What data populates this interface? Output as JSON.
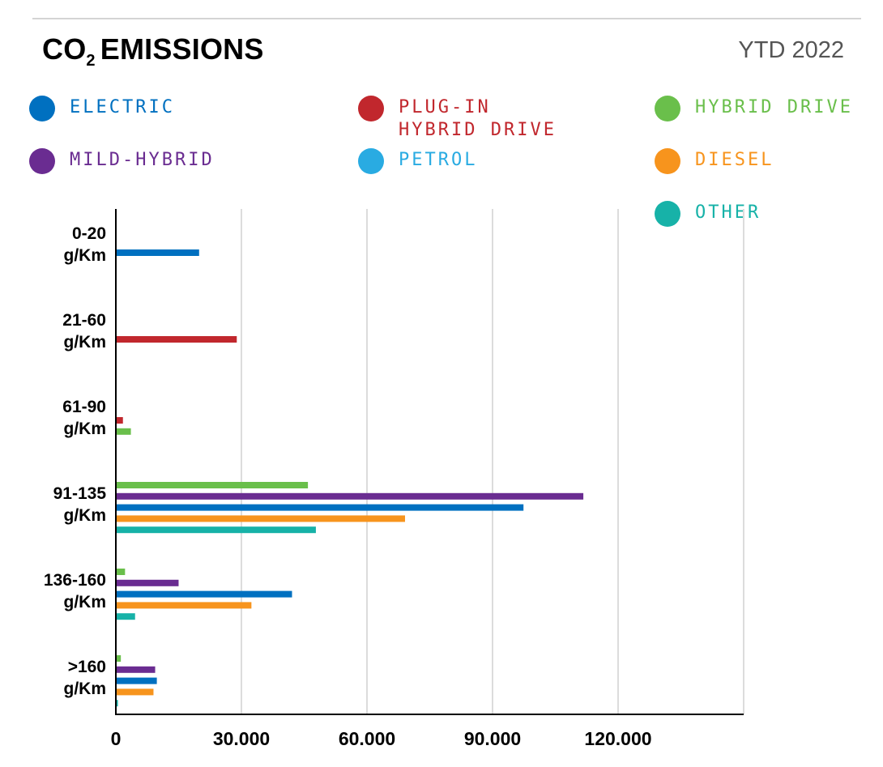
{
  "header": {
    "title_main": "CO",
    "title_sub": "2",
    "title_rest": "EMISSIONS",
    "period": "YTD 2022"
  },
  "colors": {
    "electric": "#0070c0",
    "plug_in": "#c1272d",
    "hybrid": "#6abf4b",
    "mild_hybrid": "#6a2c91",
    "petrol": "#29abe2",
    "diesel": "#f7941d",
    "other": "#17b2a8",
    "grid": "#dcdcdc"
  },
  "chart_data": {
    "type": "bar",
    "orientation": "horizontal",
    "title": "CO2 EMISSIONS",
    "subtitle": "YTD 2022",
    "categories": [
      "0-20\ng/Km",
      "21-60\ng/Km",
      "61-90\ng/Km",
      "91-135\ng/Km",
      "136-160\ng/Km",
      ">160\ng/Km"
    ],
    "legend": [
      {
        "name": "ELECTRIC",
        "color": "#0070c0"
      },
      {
        "name": "PLUG-IN\nHYBRID DRIVE",
        "color": "#c1272d"
      },
      {
        "name": "HYBRID DRIVE",
        "color": "#6abf4b"
      },
      {
        "name": "MILD-HYBRID",
        "color": "#6a2c91"
      },
      {
        "name": "PETROL",
        "color": "#29abe2"
      },
      {
        "name": "DIESEL",
        "color": "#f7941d"
      },
      {
        "name": "OTHER",
        "color": "#17b2a8"
      }
    ],
    "legend_position": "top",
    "groups": [
      {
        "category": "0-20\ng/Km",
        "bars": [
          {
            "series": "ELECTRIC",
            "value": 19700
          }
        ]
      },
      {
        "category": "21-60\ng/Km",
        "bars": [
          {
            "series": "PLUG-IN HYBRID DRIVE",
            "value": 28700
          }
        ]
      },
      {
        "category": "61-90\ng/Km",
        "bars": [
          {
            "series": "PLUG-IN HYBRID DRIVE",
            "value": 1500
          },
          {
            "series": "HYBRID DRIVE",
            "value": 3400
          }
        ]
      },
      {
        "category": "91-135\ng/Km",
        "bars": [
          {
            "series": "HYBRID DRIVE",
            "value": 45700
          },
          {
            "series": "MILD-HYBRID",
            "value": 111500
          },
          {
            "series": "ELECTRIC",
            "value": 97200
          },
          {
            "series": "DIESEL",
            "value": 68900
          },
          {
            "series": "OTHER",
            "value": 47600
          }
        ]
      },
      {
        "category": "136-160\ng/Km",
        "bars": [
          {
            "series": "HYBRID DRIVE",
            "value": 2000
          },
          {
            "series": "MILD-HYBRID",
            "value": 14800
          },
          {
            "series": "ELECTRIC",
            "value": 41900
          },
          {
            "series": "DIESEL",
            "value": 32200
          },
          {
            "series": "OTHER",
            "value": 4400
          }
        ]
      },
      {
        "category": ">160\ng/Km",
        "bars": [
          {
            "series": "HYBRID DRIVE",
            "value": 1000
          },
          {
            "series": "MILD-HYBRID",
            "value": 9200
          },
          {
            "series": "ELECTRIC",
            "value": 9600
          },
          {
            "series": "DIESEL",
            "value": 8800
          },
          {
            "series": "OTHER",
            "value": 300
          }
        ]
      }
    ],
    "xticks": [
      0,
      30000,
      60000,
      90000,
      120000
    ],
    "xtick_labels": [
      "0",
      "30.000",
      "60.000",
      "90.000",
      "120.000"
    ],
    "xlim": [
      0,
      150000
    ],
    "grid": true
  }
}
